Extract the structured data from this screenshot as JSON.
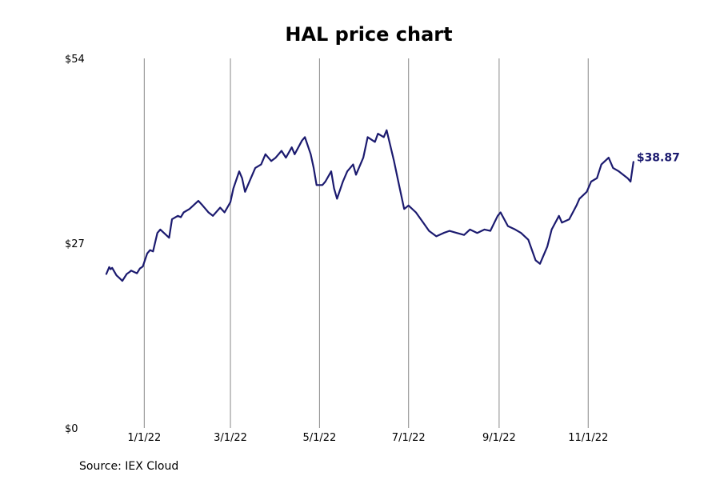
{
  "chart_data": {
    "type": "line",
    "title": "HAL price chart",
    "source": "Source: IEX Cloud",
    "xlabel": "",
    "ylabel": "",
    "ylim": [
      0,
      54
    ],
    "y_ticks": [
      {
        "value": 54,
        "label": "$54"
      },
      {
        "value": 27,
        "label": "$27"
      },
      {
        "value": 0,
        "label": "$0"
      }
    ],
    "xlim": [
      "2021-11-18",
      "2022-12-24"
    ],
    "x_ticks": [
      {
        "date": "2022-01-01",
        "label": "1/1/22"
      },
      {
        "date": "2022-03-01",
        "label": "3/1/22"
      },
      {
        "date": "2022-05-01",
        "label": "5/1/22"
      },
      {
        "date": "2022-07-01",
        "label": "7/1/22"
      },
      {
        "date": "2022-09-01",
        "label": "9/1/22"
      },
      {
        "date": "2022-11-01",
        "label": "11/1/22"
      }
    ],
    "grid": "vertical at x ticks",
    "line_color": "#1b1a6f",
    "last_value_label": "$38.87",
    "series": [
      {
        "x": [
          "2021-12-06",
          "2021-12-08",
          "2021-12-09",
          "2021-12-10",
          "2021-12-13",
          "2021-12-15",
          "2021-12-17",
          "2021-12-20",
          "2021-12-22",
          "2021-12-23",
          "2021-12-27",
          "2021-12-29",
          "2021-12-31",
          "2022-01-03",
          "2022-01-05",
          "2022-01-07",
          "2022-01-10",
          "2022-01-12",
          "2022-01-14",
          "2022-01-18",
          "2022-01-20",
          "2022-01-24",
          "2022-01-26",
          "2022-01-28",
          "2022-02-01",
          "2022-02-03",
          "2022-02-07",
          "2022-02-10",
          "2022-02-14",
          "2022-02-17",
          "2022-02-22",
          "2022-02-25",
          "2022-03-01",
          "2022-03-03",
          "2022-03-07",
          "2022-03-09",
          "2022-03-11",
          "2022-03-15",
          "2022-03-18",
          "2022-03-22",
          "2022-03-25",
          "2022-03-29",
          "2022-04-01",
          "2022-04-05",
          "2022-04-08",
          "2022-04-12",
          "2022-04-14",
          "2022-04-19",
          "2022-04-21",
          "2022-04-25",
          "2022-04-27",
          "2022-04-29",
          "2022-05-03",
          "2022-05-05",
          "2022-05-09",
          "2022-05-11",
          "2022-05-13",
          "2022-05-17",
          "2022-05-20",
          "2022-05-24",
          "2022-05-26",
          "2022-05-31",
          "2022-06-03",
          "2022-06-08",
          "2022-06-10",
          "2022-06-14",
          "2022-06-16",
          "2022-06-21",
          "2022-06-24",
          "2022-06-28",
          "2022-07-01",
          "2022-07-06",
          "2022-07-11",
          "2022-07-15",
          "2022-07-20",
          "2022-07-25",
          "2022-07-29",
          "2022-08-03",
          "2022-08-08",
          "2022-08-12",
          "2022-08-17",
          "2022-08-22",
          "2022-08-26",
          "2022-08-31",
          "2022-09-02",
          "2022-09-07",
          "2022-09-12",
          "2022-09-16",
          "2022-09-21",
          "2022-09-26",
          "2022-09-29",
          "2022-10-04",
          "2022-10-07",
          "2022-10-12",
          "2022-10-14",
          "2022-10-19",
          "2022-10-24",
          "2022-10-26",
          "2022-10-31",
          "2022-11-03",
          "2022-11-07",
          "2022-11-10",
          "2022-11-15",
          "2022-11-18",
          "2022-11-22",
          "2022-11-28",
          "2022-11-30",
          "2022-12-02"
        ],
        "values": [
          22.5,
          23.5,
          23.2,
          23.4,
          22.3,
          21.9,
          21.5,
          22.5,
          22.8,
          23.0,
          22.6,
          23.3,
          23.6,
          25.5,
          26.0,
          25.8,
          28.5,
          29.0,
          28.6,
          27.8,
          30.5,
          31.0,
          30.8,
          31.5,
          32.0,
          32.4,
          33.2,
          32.5,
          31.5,
          31.0,
          32.2,
          31.5,
          33.0,
          35.0,
          37.5,
          36.5,
          34.5,
          36.5,
          38.0,
          38.5,
          40.0,
          39.0,
          39.5,
          40.5,
          39.5,
          41.0,
          40.0,
          42.0,
          42.5,
          40.0,
          38.0,
          35.5,
          35.5,
          36.0,
          37.5,
          35.0,
          33.5,
          36.0,
          37.5,
          38.5,
          37.0,
          39.5,
          42.5,
          41.8,
          43.0,
          42.5,
          43.5,
          39.0,
          36.0,
          32.0,
          32.5,
          31.5,
          30.0,
          28.8,
          28.0,
          28.5,
          28.8,
          28.5,
          28.2,
          29.0,
          28.5,
          29.0,
          28.8,
          31.0,
          31.5,
          29.5,
          29.0,
          28.5,
          27.5,
          24.5,
          24.0,
          26.5,
          29.0,
          31.0,
          30.0,
          30.5,
          32.5,
          33.5,
          34.5,
          36.0,
          36.5,
          38.5,
          39.5,
          38.0,
          37.5,
          36.5,
          36.0,
          38.87
        ]
      }
    ]
  }
}
